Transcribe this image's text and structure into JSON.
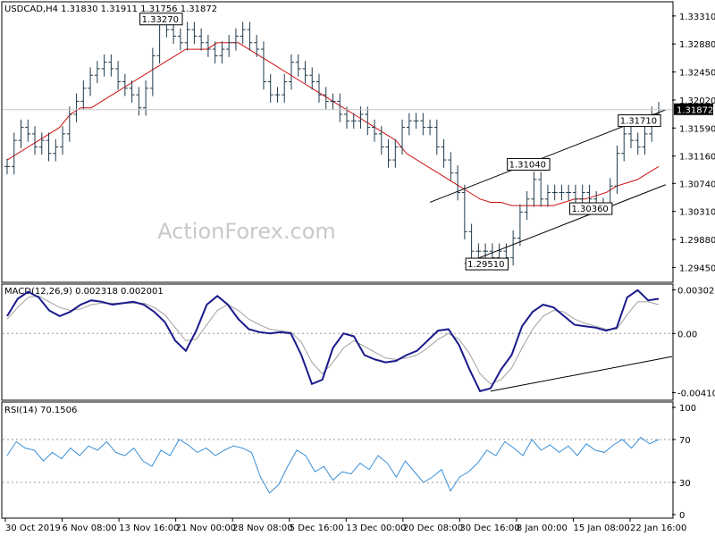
{
  "chart_data": [
    {
      "type": "candlestick",
      "header": "USDCAD,H4  1.31830 1.31911 1.31756 1.31872",
      "watermark": "ActionForex.com",
      "ylim": [
        1.2925,
        1.335
      ],
      "y_ticks": [
        "1.33310",
        "1.32880",
        "1.32450",
        "1.32020",
        "1.31590",
        "1.31160",
        "1.30740",
        "1.30310",
        "1.29880",
        "1.29450"
      ],
      "y_tick_values": [
        1.3331,
        1.3288,
        1.3245,
        1.3202,
        1.3159,
        1.3116,
        1.3074,
        1.3031,
        1.2988,
        1.2945
      ],
      "current_price_label": "1.31872",
      "current_price": 1.31872,
      "close_series": [
        1.31,
        1.314,
        1.316,
        1.315,
        1.313,
        1.314,
        1.312,
        1.313,
        1.315,
        1.318,
        1.32,
        1.322,
        1.324,
        1.325,
        1.326,
        1.325,
        1.323,
        1.322,
        1.321,
        1.319,
        1.322,
        1.327,
        1.332,
        1.331,
        1.33,
        1.329,
        1.331,
        1.33,
        1.329,
        1.328,
        1.327,
        1.328,
        1.329,
        1.33,
        1.331,
        1.329,
        1.328,
        1.323,
        1.321,
        1.321,
        1.323,
        1.326,
        1.325,
        1.324,
        1.323,
        1.321,
        1.32,
        1.32,
        1.318,
        1.317,
        1.317,
        1.318,
        1.316,
        1.315,
        1.313,
        1.311,
        1.313,
        1.316,
        1.317,
        1.317,
        1.316,
        1.316,
        1.313,
        1.311,
        1.309,
        1.306,
        1.3,
        1.297,
        1.297,
        1.297,
        1.296,
        1.297,
        1.296,
        1.299,
        1.303,
        1.305,
        1.308,
        1.305,
        1.306,
        1.306,
        1.306,
        1.306,
        1.305,
        1.306,
        1.305,
        1.304,
        1.304,
        1.307,
        1.312,
        1.315,
        1.314,
        1.313,
        1.315,
        1.318,
        1.3187
      ],
      "ma_series": [
        1.311,
        1.312,
        1.313,
        1.314,
        1.315,
        1.316,
        1.318,
        1.319,
        1.319,
        1.32,
        1.321,
        1.322,
        1.323,
        1.324,
        1.325,
        1.326,
        1.327,
        1.328,
        1.328,
        1.328,
        1.329,
        1.329,
        1.329,
        1.328,
        1.327,
        1.326,
        1.325,
        1.324,
        1.323,
        1.322,
        1.321,
        1.32,
        1.319,
        1.318,
        1.317,
        1.316,
        1.315,
        1.314,
        1.312,
        1.311,
        1.31,
        1.309,
        1.308,
        1.307,
        1.306,
        1.305,
        1.3045,
        1.3045,
        1.304,
        1.304,
        1.304,
        1.304,
        1.304,
        1.3045,
        1.305,
        1.305,
        1.3055,
        1.306,
        1.307,
        1.3075,
        1.308,
        1.309,
        1.31
      ],
      "level_labels": [
        {
          "text": "1.33270",
          "x_index": 22,
          "value": 1.3327
        },
        {
          "text": "1.31040",
          "x_index": 75,
          "value": 1.3104
        },
        {
          "text": "1.29510",
          "x_index": 69,
          "value": 1.2951
        },
        {
          "text": "1.31710",
          "x_index": 91,
          "value": 1.3171
        },
        {
          "text": "1.30360",
          "x_index": 84,
          "value": 1.3036
        }
      ],
      "trendlines": [
        {
          "from": [
            61,
            1.3045
          ],
          "to": [
            95,
            1.3187
          ]
        },
        {
          "from": [
            66,
            1.2951
          ],
          "to": [
            95,
            1.3072
          ]
        }
      ]
    },
    {
      "type": "line",
      "title": "MACD(12,26,9) 0.002318 0.002001",
      "ylim": [
        -0.0045,
        0.0033
      ],
      "y_ticks": [
        "0.003021",
        "0.00",
        "-0.004103"
      ],
      "y_tick_values": [
        0.003021,
        0.0,
        -0.004103
      ],
      "series": [
        {
          "values": [
            0.0012,
            0.0024,
            0.0029,
            0.0025,
            0.0016,
            0.0012,
            0.0015,
            0.002,
            0.0023,
            0.0022,
            0.002,
            0.0021,
            0.0022,
            0.002,
            0.0015,
            0.0008,
            -0.0005,
            -0.0012,
            0.0002,
            0.002,
            0.0026,
            0.002,
            0.001,
            0.0003,
            0.0001,
            0.0,
            0.0001,
            0.0,
            -0.0015,
            -0.0035,
            -0.0032,
            -0.001,
            0.0,
            -0.0002,
            -0.0015,
            -0.0018,
            -0.002,
            -0.0019,
            -0.0015,
            -0.0012,
            -0.0005,
            0.0002,
            0.0003,
            -0.0008,
            -0.0025,
            -0.004,
            -0.0038,
            -0.0025,
            -0.0015,
            0.0005,
            0.0015,
            0.002,
            0.0018,
            0.0012,
            0.0006,
            0.0005,
            0.0004,
            0.0002,
            0.0004,
            0.0025,
            0.003,
            0.0023,
            0.0024
          ]
        },
        {
          "values": [
            0.001,
            0.0018,
            0.0025,
            0.0026,
            0.0022,
            0.0018,
            0.0016,
            0.0017,
            0.002,
            0.0021,
            0.0021,
            0.0021,
            0.0021,
            0.0021,
            0.0018,
            0.0013,
            0.0004,
            -0.0005,
            -0.0004,
            0.0006,
            0.0016,
            0.002,
            0.0016,
            0.001,
            0.0006,
            0.0003,
            0.0002,
            0.0001,
            -0.0006,
            -0.002,
            -0.0028,
            -0.002,
            -0.001,
            -0.0005,
            -0.0009,
            -0.0013,
            -0.0017,
            -0.0018,
            -0.0017,
            -0.0015,
            -0.001,
            -0.0004,
            0.0,
            -0.0004,
            -0.0014,
            -0.0028,
            -0.0035,
            -0.0032,
            -0.0024,
            -0.001,
            0.0003,
            0.0012,
            0.0016,
            0.0015,
            0.001,
            0.0007,
            0.0005,
            0.0003,
            0.0003,
            0.0013,
            0.0022,
            0.0022,
            0.002
          ]
        }
      ],
      "trendline": {
        "from": [
          46,
          -0.004
        ],
        "to": [
          62,
          -0.0016
        ]
      }
    },
    {
      "type": "line",
      "title": "RSI(14) 70.1506",
      "ylim": [
        0,
        100
      ],
      "y_ticks": [
        "100",
        "70",
        "30",
        "0"
      ],
      "y_tick_values": [
        100,
        70,
        30,
        0
      ],
      "levels": [
        70,
        30
      ],
      "series": [
        {
          "values": [
            55,
            68,
            62,
            60,
            50,
            58,
            52,
            62,
            55,
            64,
            60,
            68,
            58,
            55,
            62,
            50,
            45,
            60,
            55,
            70,
            65,
            58,
            62,
            55,
            60,
            64,
            62,
            58,
            35,
            20,
            28,
            45,
            60,
            55,
            40,
            45,
            32,
            40,
            38,
            48,
            42,
            55,
            48,
            35,
            50,
            40,
            30,
            35,
            42,
            22,
            35,
            40,
            48,
            60,
            55,
            68,
            62,
            55,
            70,
            60,
            65,
            58,
            64,
            55,
            66,
            60,
            58,
            65,
            70,
            62,
            72,
            66,
            70
          ]
        }
      ],
      "x_ticks": [
        "30 Oct 2019",
        "6 Nov 08:00",
        "13 Nov 16:00",
        "21 Nov 00:00",
        "28 Nov 08:00",
        "5 Dec 16:00",
        "13 Dec 00:00",
        "20 Dec 08:00",
        "30 Dec 16:00",
        "8 Jan 00:00",
        "15 Jan 08:00",
        "22 Jan 16:00"
      ]
    }
  ]
}
